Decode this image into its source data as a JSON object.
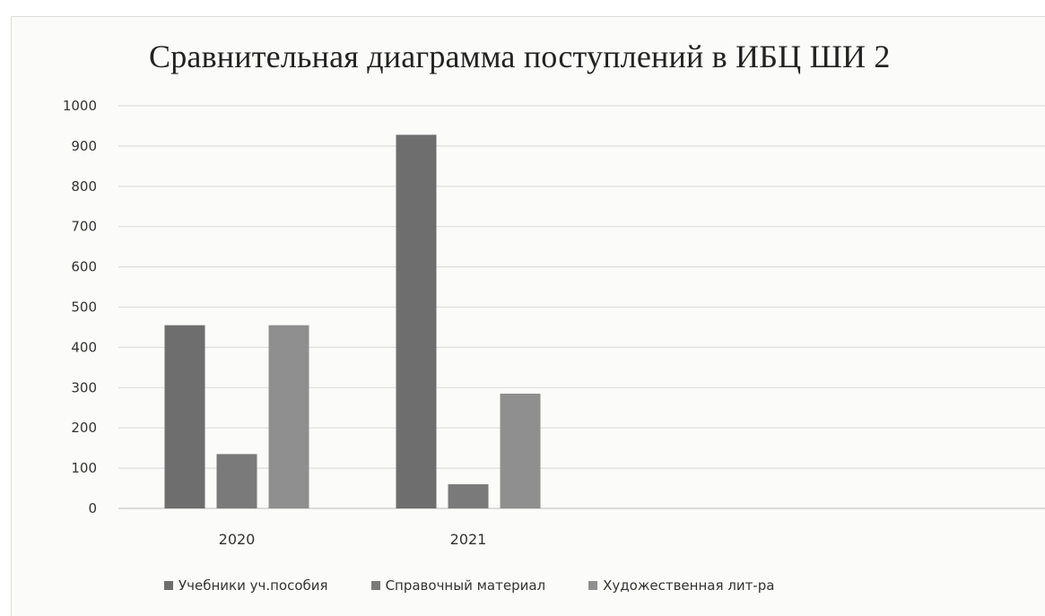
{
  "chart_data": {
    "type": "bar",
    "title": "Сравнительная диаграмма поступлений в ИБЦ ШИ 2",
    "categories": [
      "2020",
      "2021"
    ],
    "series": [
      {
        "name": "Учебники уч.пособия",
        "values": [
          455,
          928
        ],
        "color": "#6e6e6e"
      },
      {
        "name": "Справочный материал",
        "values": [
          135,
          60
        ],
        "color": "#7a7a7a"
      },
      {
        "name": "Художественная лит-ра",
        "values": [
          455,
          285
        ],
        "color": "#8f8f8f"
      }
    ],
    "ylim": [
      0,
      1000
    ],
    "yticks": [
      0,
      100,
      200,
      300,
      400,
      500,
      600,
      700,
      800,
      900,
      1000
    ],
    "grid": true,
    "legend_position": "bottom"
  }
}
